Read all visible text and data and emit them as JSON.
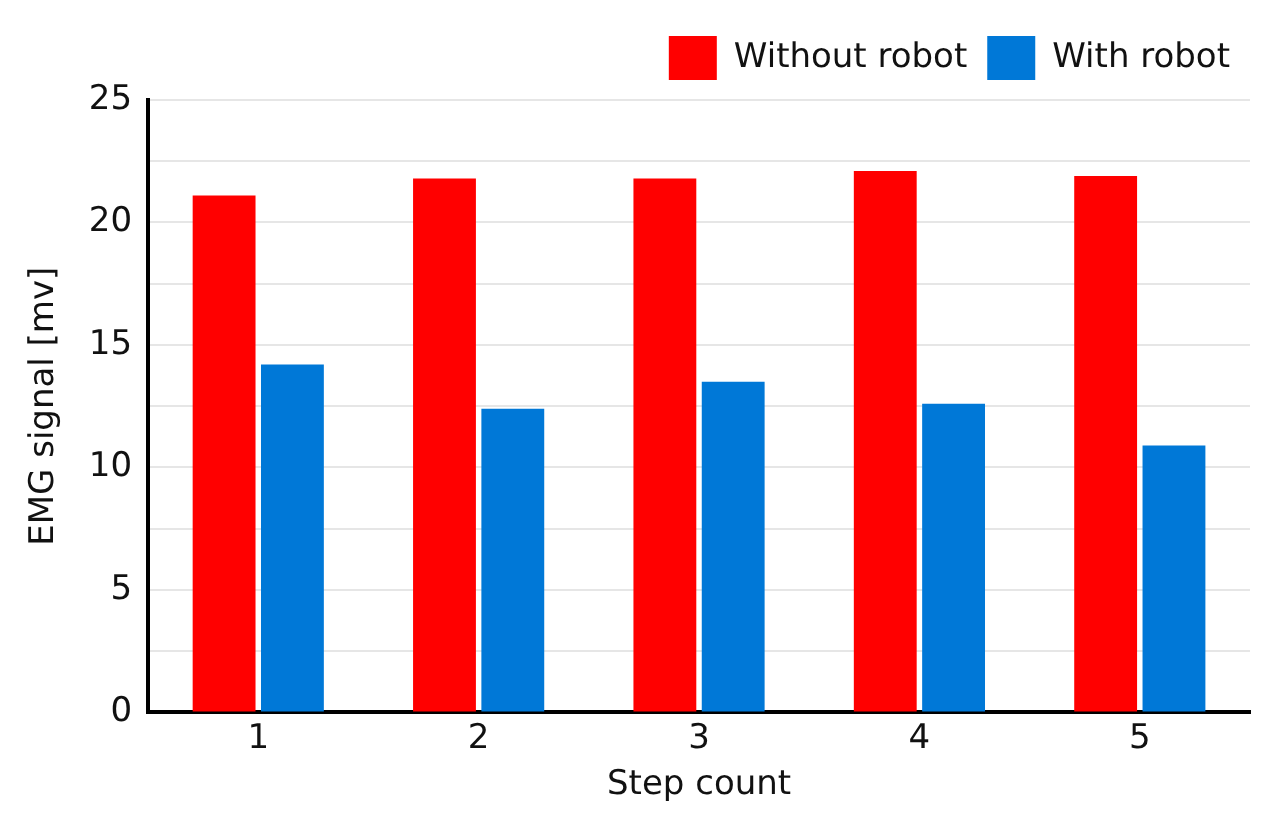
{
  "chart_data": {
    "type": "bar",
    "xlabel": "Step count",
    "ylabel": "EMG signal [mv]",
    "categories": [
      "1",
      "2",
      "3",
      "4",
      "5"
    ],
    "series": [
      {
        "name": "Without robot",
        "color": "#ff0000",
        "values": [
          21.1,
          21.8,
          21.8,
          22.1,
          21.9
        ]
      },
      {
        "name": "With robot",
        "color": "#0078d7",
        "values": [
          14.2,
          12.4,
          13.5,
          12.6,
          10.9
        ]
      }
    ],
    "ylim": [
      0,
      25
    ],
    "yticks": [
      0,
      {
        "value": 2.5,
        "label": null
      },
      5,
      {
        "value": 7.5,
        "label": null
      },
      10,
      {
        "value": 12.5,
        "label": null
      },
      15,
      {
        "value": 17.5,
        "label": null
      },
      20,
      {
        "value": 22.5,
        "label": null
      },
      25
    ],
    "grid": "y",
    "legend": "top right"
  }
}
